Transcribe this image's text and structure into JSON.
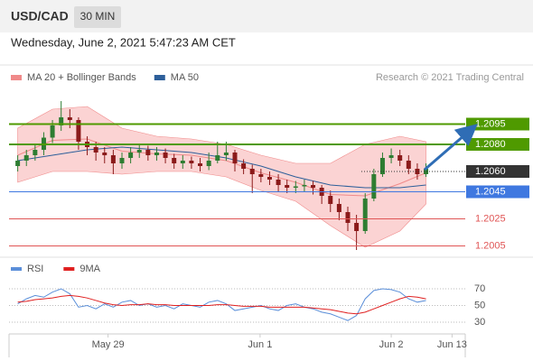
{
  "header": {
    "symbol": "USD/CAD",
    "interval": "30 MIN",
    "datetime": "Wednesday, June 2, 2021 5:47:23 AM CET"
  },
  "chart_data": [
    {
      "type": "candlestick",
      "credit": "Research © 2021 Trading Central",
      "xlim": [
        -1,
        51
      ],
      "ylim": [
        1.2,
        1.212
      ],
      "up_color": "#2e7d32",
      "down_color": "#8b1a1a",
      "open": [
        1.2064,
        1.2068,
        1.2072,
        1.2076,
        1.2085,
        1.2094,
        1.21,
        1.2098,
        1.2082,
        1.2078,
        1.2074,
        1.2072,
        1.2066,
        1.207,
        1.2074,
        1.2076,
        1.2072,
        1.2074,
        1.207,
        1.2066,
        1.2068,
        1.2066,
        1.2064,
        1.2068,
        1.2072,
        1.2074,
        1.2066,
        1.2062,
        1.2058,
        1.2056,
        1.2054,
        1.205,
        1.2048,
        1.2049,
        1.205,
        1.2048,
        1.2042,
        1.2036,
        1.203,
        1.2022,
        1.2016,
        1.204,
        1.2058,
        1.207,
        1.2072,
        1.2068,
        1.2062,
        1.2058
      ],
      "high": [
        1.2072,
        1.2076,
        1.208,
        1.2089,
        1.2098,
        1.2112,
        1.2106,
        1.21,
        1.2086,
        1.2082,
        1.2078,
        1.2076,
        1.2074,
        1.2078,
        1.208,
        1.2079,
        1.2078,
        1.2077,
        1.2073,
        1.2072,
        1.2071,
        1.207,
        1.2074,
        1.2082,
        1.2082,
        1.2076,
        1.2069,
        1.2065,
        1.2062,
        1.206,
        1.2058,
        1.2054,
        1.2053,
        1.2054,
        1.2053,
        1.205,
        1.2046,
        1.204,
        1.2034,
        1.2028,
        1.2044,
        1.2062,
        1.2074,
        1.2077,
        1.2076,
        1.2072,
        1.2066,
        1.2066
      ],
      "low": [
        1.206,
        1.2064,
        1.2068,
        1.2072,
        1.2081,
        1.209,
        1.2092,
        1.2076,
        1.2072,
        1.2068,
        1.2066,
        1.2058,
        1.2062,
        1.2066,
        1.207,
        1.2068,
        1.2068,
        1.2066,
        1.2062,
        1.2062,
        1.2062,
        1.206,
        1.2061,
        1.2066,
        1.2068,
        1.206,
        1.2058,
        1.2044,
        1.2052,
        1.205,
        1.2045,
        1.2044,
        1.2044,
        1.2045,
        1.2043,
        1.2036,
        1.203,
        1.2024,
        1.2016,
        1.2002,
        1.2014,
        1.2038,
        1.2056,
        1.2066,
        1.2064,
        1.2058,
        1.2054,
        1.2056
      ],
      "close": [
        1.2068,
        1.2072,
        1.2076,
        1.2085,
        1.2094,
        1.21,
        1.2098,
        1.2082,
        1.2078,
        1.2074,
        1.2072,
        1.2066,
        1.207,
        1.2074,
        1.2076,
        1.2072,
        1.2074,
        1.207,
        1.2066,
        1.2068,
        1.2066,
        1.2064,
        1.2068,
        1.2072,
        1.2074,
        1.2066,
        1.2062,
        1.2058,
        1.2056,
        1.2054,
        1.205,
        1.2048,
        1.2049,
        1.205,
        1.2048,
        1.2042,
        1.2036,
        1.203,
        1.2022,
        1.2016,
        1.204,
        1.2058,
        1.207,
        1.2072,
        1.2068,
        1.2062,
        1.2058,
        1.2062
      ],
      "overlays": [
        {
          "name": "MA 20 + Bollinger Bands",
          "color": "#f08a8a",
          "band_color": "#fbd3d3",
          "x": [
            0,
            4,
            8,
            12,
            16,
            20,
            24,
            28,
            32,
            36,
            40,
            44,
            47
          ],
          "values": [
            1.2072,
            1.2083,
            1.2084,
            1.2075,
            1.2073,
            1.2072,
            1.2068,
            1.2059,
            1.2052,
            1.2043,
            1.2042,
            1.2051,
            1.2059
          ],
          "upper": [
            1.2092,
            1.2106,
            1.2108,
            1.2092,
            1.2086,
            1.2084,
            1.208,
            1.2072,
            1.2066,
            1.2066,
            1.208,
            1.2086,
            1.2082
          ],
          "lower": [
            1.2052,
            1.206,
            1.206,
            1.2058,
            1.206,
            1.206,
            1.2056,
            1.2046,
            1.2038,
            1.202,
            1.2004,
            1.2016,
            1.2036
          ]
        },
        {
          "name": "MA 50",
          "color": "#2d5f9a",
          "x": [
            0,
            4,
            8,
            12,
            16,
            20,
            24,
            28,
            32,
            36,
            40,
            44,
            47
          ],
          "values": [
            1.2068,
            1.2072,
            1.2076,
            1.2078,
            1.2076,
            1.2074,
            1.207,
            1.2064,
            1.2056,
            1.205,
            1.2048,
            1.2048,
            1.205
          ]
        }
      ],
      "levels": [
        {
          "value": 1.2095,
          "color": "#4f9a00",
          "line": "solid",
          "tag": "box"
        },
        {
          "value": 1.208,
          "label": "1.2080",
          "color": "#4f9a00",
          "line": "solid",
          "tag": "box"
        },
        {
          "value": 1.206,
          "label": "1.2060",
          "color": "#333333",
          "line": "dotted",
          "tag": "box"
        },
        {
          "value": 1.2045,
          "color": "#3f78e0",
          "line": "solid",
          "tag": "box"
        },
        {
          "value": 1.2025,
          "color": "#e05555",
          "line": "solid",
          "tag": "text"
        },
        {
          "value": 1.2005,
          "color": "#e05555",
          "line": "solid",
          "tag": "text"
        }
      ]
    },
    {
      "type": "line",
      "xlim": [
        -1,
        51
      ],
      "ylim": [
        20,
        80
      ],
      "yticks": [
        70,
        50,
        30
      ],
      "xticks": [
        {
          "value": 10.4,
          "label": "May 29"
        },
        {
          "value": 27.9,
          "label": "Jun 1"
        },
        {
          "value": 43,
          "label": "Jun 2"
        },
        {
          "value": 50,
          "label": "Jun 13"
        }
      ],
      "series": [
        {
          "name": "RSI",
          "color": "#5b8fd9",
          "values": [
            52,
            58,
            62,
            60,
            66,
            70,
            64,
            48,
            50,
            46,
            52,
            48,
            54,
            56,
            50,
            52,
            48,
            50,
            46,
            52,
            50,
            48,
            54,
            56,
            52,
            44,
            46,
            48,
            50,
            46,
            44,
            50,
            52,
            48,
            46,
            42,
            40,
            36,
            32,
            38,
            58,
            68,
            70,
            69,
            66,
            58,
            54,
            56
          ]
        },
        {
          "name": "9MA",
          "color": "#e02020",
          "values": [
            54,
            55,
            57,
            58,
            59,
            61,
            62,
            61,
            59,
            56,
            53,
            51,
            50,
            51,
            51,
            52,
            51,
            51,
            50,
            50,
            50,
            50,
            50,
            51,
            51,
            50,
            49,
            49,
            49,
            48,
            48,
            48,
            48,
            48,
            47,
            46,
            45,
            43,
            41,
            40,
            42,
            46,
            50,
            54,
            58,
            61,
            60,
            58
          ]
        }
      ]
    }
  ]
}
